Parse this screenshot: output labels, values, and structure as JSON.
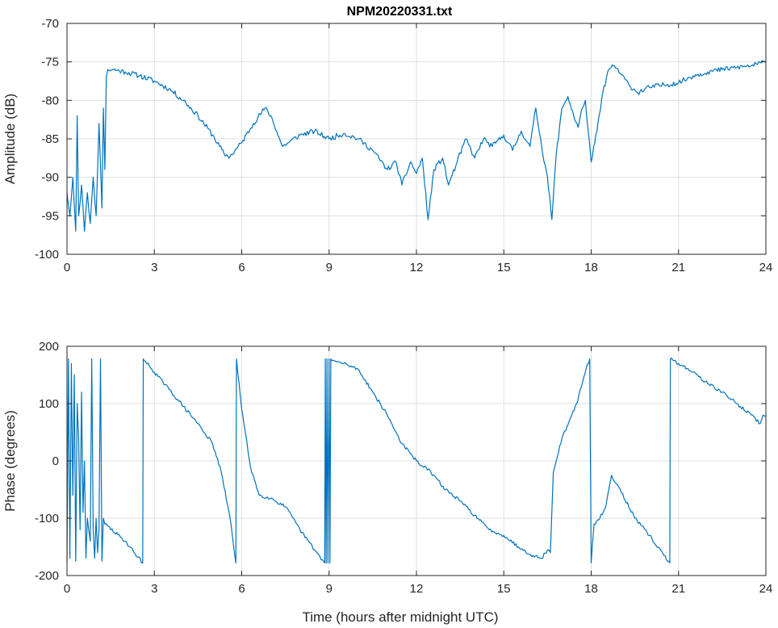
{
  "figure": {
    "title": "NPM20220331.txt",
    "xlabel": "Time (hours after midnight UTC)"
  },
  "chart_data": [
    {
      "type": "line",
      "title": "NPM20220331.txt",
      "xlabel": "",
      "ylabel": "Amplitude (dB)",
      "xlim": [
        0,
        24
      ],
      "ylim": [
        -100,
        -70
      ],
      "xticks": [
        0,
        3,
        6,
        9,
        12,
        15,
        18,
        21,
        24
      ],
      "yticks": [
        -70,
        -75,
        -80,
        -85,
        -90,
        -95,
        -100
      ],
      "grid": true,
      "series": [
        {
          "color": "#0072BD",
          "noise": 0.35,
          "points": [
            [
              0,
              -92
            ],
            [
              0.1,
              -95
            ],
            [
              0.2,
              -90
            ],
            [
              0.3,
              -97
            ],
            [
              0.35,
              -82
            ],
            [
              0.4,
              -95
            ],
            [
              0.5,
              -91
            ],
            [
              0.6,
              -97
            ],
            [
              0.7,
              -92
            ],
            [
              0.8,
              -96
            ],
            [
              0.9,
              -90
            ],
            [
              1.0,
              -95
            ],
            [
              1.1,
              -83
            ],
            [
              1.2,
              -94
            ],
            [
              1.25,
              -81
            ],
            [
              1.3,
              -89
            ],
            [
              1.35,
              -77
            ],
            [
              1.4,
              -76
            ],
            [
              1.6,
              -76
            ],
            [
              2.0,
              -76.3
            ],
            [
              2.5,
              -76.8
            ],
            [
              3.0,
              -77.5
            ],
            [
              3.5,
              -78.5
            ],
            [
              4.0,
              -80
            ],
            [
              4.5,
              -82
            ],
            [
              5.0,
              -84.5
            ],
            [
              5.4,
              -87
            ],
            [
              5.6,
              -87.3
            ],
            [
              6.0,
              -85.5
            ],
            [
              6.4,
              -83
            ],
            [
              6.8,
              -81
            ],
            [
              7.0,
              -82
            ],
            [
              7.2,
              -84
            ],
            [
              7.4,
              -86
            ],
            [
              7.6,
              -85.5
            ],
            [
              8.0,
              -84.5
            ],
            [
              8.5,
              -84
            ],
            [
              9.0,
              -85
            ],
            [
              9.5,
              -84.3
            ],
            [
              10.0,
              -85
            ],
            [
              10.5,
              -86.5
            ],
            [
              11.0,
              -89
            ],
            [
              11.3,
              -88
            ],
            [
              11.5,
              -91
            ],
            [
              11.8,
              -88
            ],
            [
              12.0,
              -89.5
            ],
            [
              12.2,
              -87.5
            ],
            [
              12.4,
              -95.5
            ],
            [
              12.6,
              -89
            ],
            [
              12.9,
              -87.5
            ],
            [
              13.1,
              -91
            ],
            [
              13.4,
              -88
            ],
            [
              13.7,
              -85
            ],
            [
              14.0,
              -87.5
            ],
            [
              14.3,
              -85
            ],
            [
              14.6,
              -86
            ],
            [
              15.0,
              -84.5
            ],
            [
              15.3,
              -86.5
            ],
            [
              15.6,
              -84
            ],
            [
              15.9,
              -86
            ],
            [
              16.1,
              -81
            ],
            [
              16.3,
              -86
            ],
            [
              16.5,
              -90
            ],
            [
              16.65,
              -95.5
            ],
            [
              16.8,
              -87
            ],
            [
              17.0,
              -81
            ],
            [
              17.2,
              -79.5
            ],
            [
              17.4,
              -82
            ],
            [
              17.55,
              -83.5
            ],
            [
              17.7,
              -81
            ],
            [
              17.8,
              -80
            ],
            [
              17.9,
              -84
            ],
            [
              18.0,
              -88
            ],
            [
              18.2,
              -84
            ],
            [
              18.4,
              -79
            ],
            [
              18.6,
              -76
            ],
            [
              18.8,
              -75.5
            ],
            [
              19.0,
              -76.5
            ],
            [
              19.3,
              -78
            ],
            [
              19.6,
              -79
            ],
            [
              20.0,
              -78.3
            ],
            [
              20.5,
              -78
            ],
            [
              21.0,
              -77.7
            ],
            [
              21.5,
              -76.8
            ],
            [
              22.0,
              -76.3
            ],
            [
              22.5,
              -76
            ],
            [
              23.0,
              -75.7
            ],
            [
              23.5,
              -75.5
            ],
            [
              24.0,
              -75
            ]
          ]
        }
      ]
    },
    {
      "type": "line",
      "title": "",
      "xlabel": "Time (hours after midnight UTC)",
      "ylabel": "Phase (degrees)",
      "xlim": [
        0,
        24
      ],
      "ylim": [
        -200,
        200
      ],
      "xticks": [
        0,
        3,
        6,
        9,
        12,
        15,
        18,
        21,
        24
      ],
      "yticks": [
        200,
        100,
        0,
        -100,
        -200
      ],
      "grid": true,
      "series": [
        {
          "color": "#0072BD",
          "noise": 3,
          "points": [
            [
              0,
              -175
            ],
            [
              0.05,
              178
            ],
            [
              0.1,
              -170
            ],
            [
              0.15,
              170
            ],
            [
              0.2,
              -60
            ],
            [
              0.25,
              150
            ],
            [
              0.3,
              -175
            ],
            [
              0.35,
              100
            ],
            [
              0.4,
              40
            ],
            [
              0.45,
              -120
            ],
            [
              0.5,
              120
            ],
            [
              0.55,
              -90
            ],
            [
              0.6,
              0
            ],
            [
              0.65,
              -170
            ],
            [
              0.7,
              -100
            ],
            [
              0.8,
              -140
            ],
            [
              0.85,
              178
            ],
            [
              0.9,
              -120
            ],
            [
              0.95,
              -170
            ],
            [
              1.0,
              -100
            ],
            [
              1.05,
              -160
            ],
            [
              1.1,
              -120
            ],
            [
              1.15,
              178
            ],
            [
              1.2,
              -175
            ],
            [
              1.25,
              -100
            ],
            [
              1.3,
              -110
            ],
            [
              2.0,
              -140
            ],
            [
              2.6,
              -178
            ],
            [
              2.62,
              178
            ],
            [
              3.0,
              155
            ],
            [
              3.5,
              125
            ],
            [
              4.0,
              95
            ],
            [
              4.5,
              65
            ],
            [
              5.0,
              30
            ],
            [
              5.3,
              -20
            ],
            [
              5.6,
              -100
            ],
            [
              5.8,
              -178
            ],
            [
              5.82,
              178
            ],
            [
              6.0,
              90
            ],
            [
              6.3,
              -10
            ],
            [
              6.6,
              -60
            ],
            [
              7.0,
              -65
            ],
            [
              7.5,
              -80
            ],
            [
              8.0,
              -120
            ],
            [
              8.5,
              -155
            ],
            [
              8.85,
              -178
            ],
            [
              8.87,
              178
            ],
            [
              8.9,
              -178
            ],
            [
              8.93,
              178
            ],
            [
              8.96,
              -178
            ],
            [
              9.0,
              178
            ],
            [
              9.03,
              -178
            ],
            [
              9.06,
              178
            ],
            [
              9.1,
              175
            ],
            [
              9.5,
              170
            ],
            [
              10.0,
              160
            ],
            [
              10.5,
              120
            ],
            [
              11.0,
              80
            ],
            [
              11.5,
              30
            ],
            [
              12.0,
              0
            ],
            [
              12.5,
              -20
            ],
            [
              13.0,
              -50
            ],
            [
              13.5,
              -70
            ],
            [
              14.0,
              -95
            ],
            [
              14.5,
              -120
            ],
            [
              15.0,
              -130
            ],
            [
              15.5,
              -150
            ],
            [
              16.0,
              -165
            ],
            [
              16.3,
              -170
            ],
            [
              16.5,
              -155
            ],
            [
              16.6,
              -160
            ],
            [
              16.7,
              -20
            ],
            [
              17.0,
              40
            ],
            [
              17.5,
              100
            ],
            [
              17.8,
              155
            ],
            [
              17.95,
              178
            ],
            [
              18.0,
              -178
            ],
            [
              18.1,
              -110
            ],
            [
              18.3,
              -100
            ],
            [
              18.5,
              -80
            ],
            [
              18.7,
              -25
            ],
            [
              19.0,
              -50
            ],
            [
              19.5,
              -100
            ],
            [
              20.0,
              -130
            ],
            [
              20.5,
              -165
            ],
            [
              20.7,
              -178
            ],
            [
              20.72,
              178
            ],
            [
              21.0,
              170
            ],
            [
              21.5,
              155
            ],
            [
              22.0,
              135
            ],
            [
              22.5,
              120
            ],
            [
              23.0,
              100
            ],
            [
              23.5,
              80
            ],
            [
              23.8,
              65
            ],
            [
              23.9,
              80
            ],
            [
              24.0,
              78
            ]
          ]
        }
      ]
    }
  ]
}
